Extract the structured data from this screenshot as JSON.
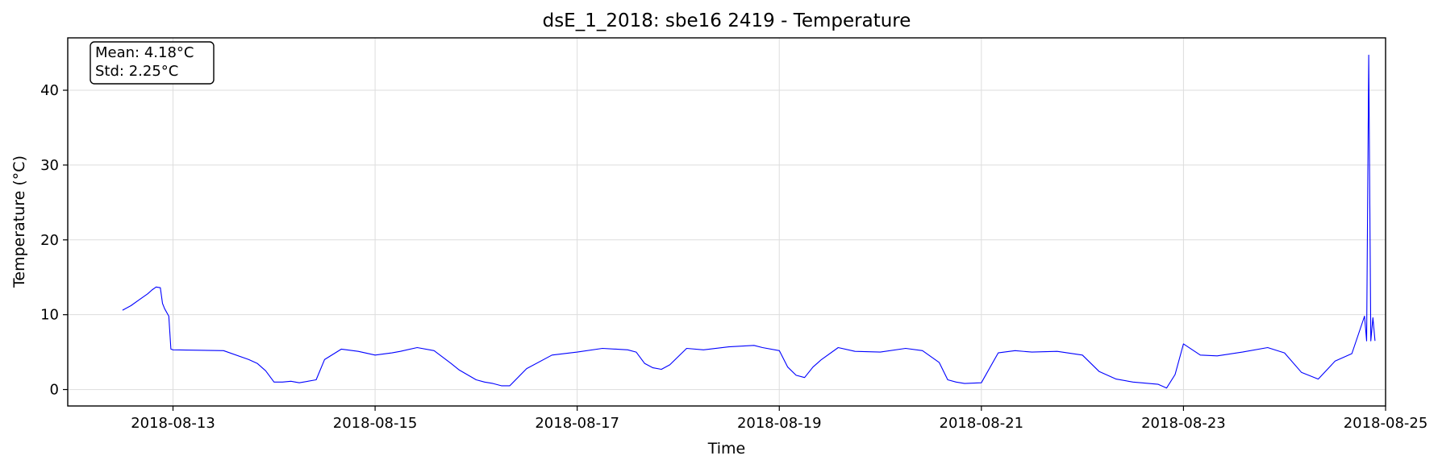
{
  "chart_data": {
    "type": "line",
    "title": "dsE_1_2018: sbe16 2419 - Temperature",
    "xlabel": "Time",
    "ylabel": "Temperature (°C)",
    "x_type": "datetime",
    "xlim": [
      "2018-08-11T23:00:00",
      "2018-08-25T00:00:00"
    ],
    "ylim": [
      -2.2,
      47
    ],
    "x_ticks": [
      "2018-08-13",
      "2018-08-15",
      "2018-08-17",
      "2018-08-19",
      "2018-08-21",
      "2018-08-23",
      "2018-08-25"
    ],
    "y_ticks": [
      0,
      10,
      20,
      30,
      40
    ],
    "grid": true,
    "stats": {
      "mean": "Mean: 4.18°C",
      "std": "Std: 2.25°C"
    },
    "stats_placement": "top-left",
    "series": [
      {
        "color": "#0000ff",
        "x": [
          "2018-08-12T12:00",
          "2018-08-12T14:00",
          "2018-08-12T16:00",
          "2018-08-12T18:00",
          "2018-08-12T19:00",
          "2018-08-12T20:00",
          "2018-08-12T21:00",
          "2018-08-12T21:30",
          "2018-08-12T22:00",
          "2018-08-12T23:00",
          "2018-08-12T23:30",
          "2018-08-13T00:00",
          "2018-08-13T12:00",
          "2018-08-13T18:00",
          "2018-08-13T20:00",
          "2018-08-13T22:00",
          "2018-08-14T00:00",
          "2018-08-14T02:00",
          "2018-08-14T04:00",
          "2018-08-14T06:00",
          "2018-08-14T10:00",
          "2018-08-14T12:00",
          "2018-08-14T16:00",
          "2018-08-14T20:00",
          "2018-08-15T00:00",
          "2018-08-15T04:00",
          "2018-08-15T06:00",
          "2018-08-15T10:00",
          "2018-08-15T14:00",
          "2018-08-15T18:00",
          "2018-08-15T20:00",
          "2018-08-16T00:00",
          "2018-08-16T02:00",
          "2018-08-16T04:00",
          "2018-08-16T06:00",
          "2018-08-16T08:00",
          "2018-08-16T12:00",
          "2018-08-16T18:00",
          "2018-08-17T00:00",
          "2018-08-17T06:00",
          "2018-08-17T12:00",
          "2018-08-17T14:00",
          "2018-08-17T16:00",
          "2018-08-17T18:00",
          "2018-08-17T20:00",
          "2018-08-17T22:00",
          "2018-08-18T02:00",
          "2018-08-18T06:00",
          "2018-08-18T12:00",
          "2018-08-18T18:00",
          "2018-08-18T20:00",
          "2018-08-19T00:00",
          "2018-08-19T02:00",
          "2018-08-19T04:00",
          "2018-08-19T06:00",
          "2018-08-19T08:00",
          "2018-08-19T10:00",
          "2018-08-19T14:00",
          "2018-08-19T18:00",
          "2018-08-20T00:00",
          "2018-08-20T06:00",
          "2018-08-20T10:00",
          "2018-08-20T14:00",
          "2018-08-20T16:00",
          "2018-08-20T18:00",
          "2018-08-20T20:00",
          "2018-08-21T00:00",
          "2018-08-21T04:00",
          "2018-08-21T08:00",
          "2018-08-21T12:00",
          "2018-08-21T18:00",
          "2018-08-22T00:00",
          "2018-08-22T04:00",
          "2018-08-22T08:00",
          "2018-08-22T12:00",
          "2018-08-22T18:00",
          "2018-08-22T20:00",
          "2018-08-22T22:00",
          "2018-08-23T00:00",
          "2018-08-23T04:00",
          "2018-08-23T08:00",
          "2018-08-23T14:00",
          "2018-08-23T20:00",
          "2018-08-24T00:00",
          "2018-08-24T04:00",
          "2018-08-24T08:00",
          "2018-08-24T12:00",
          "2018-08-24T16:00",
          "2018-08-24T19:00",
          "2018-08-24T19:30",
          "2018-08-24T20:00",
          "2018-08-24T20:30",
          "2018-08-24T21:00",
          "2018-08-24T21:30"
        ],
        "values": [
          10.6,
          11.2,
          12.0,
          12.8,
          13.3,
          13.7,
          13.6,
          11.5,
          10.8,
          9.8,
          5.4,
          5.3,
          5.2,
          4.0,
          3.5,
          2.5,
          1.0,
          1.0,
          1.1,
          0.9,
          1.3,
          4.0,
          5.4,
          5.1,
          4.6,
          4.9,
          5.1,
          5.6,
          5.2,
          3.5,
          2.6,
          1.3,
          1.0,
          0.8,
          0.5,
          0.5,
          2.8,
          4.6,
          5.0,
          5.5,
          5.3,
          5.0,
          3.5,
          2.9,
          2.7,
          3.3,
          5.5,
          5.3,
          5.7,
          5.9,
          5.6,
          5.2,
          3.0,
          1.9,
          1.6,
          3.0,
          4.0,
          5.6,
          5.1,
          5.0,
          5.5,
          5.2,
          3.6,
          1.3,
          1.0,
          0.8,
          0.9,
          4.9,
          5.2,
          5.0,
          5.1,
          4.6,
          2.4,
          1.4,
          1.0,
          0.7,
          0.2,
          2.0,
          6.1,
          4.6,
          4.5,
          5.0,
          5.6,
          4.9,
          2.3,
          1.4,
          3.8,
          4.8,
          9.8,
          6.5,
          44.7,
          6.5,
          9.6,
          6.5
        ]
      }
    ]
  }
}
